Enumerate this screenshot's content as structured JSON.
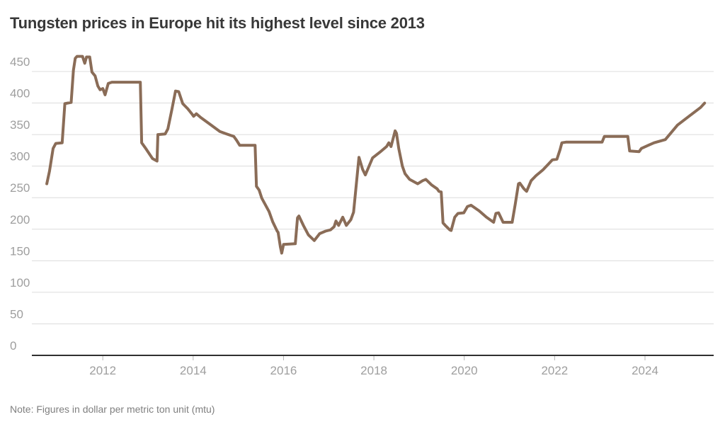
{
  "chart_data": {
    "type": "line",
    "title": "Tungsten prices in Europe hit its highest level since 2013",
    "note": "Note: Figures in dollar per metric ton unit (mtu)",
    "unit": "dollar per metric ton unit (mtu)",
    "x_ticks": [
      2012,
      2014,
      2016,
      2018,
      2020,
      2022,
      2024
    ],
    "y_ticks": [
      0,
      50,
      100,
      150,
      200,
      250,
      300,
      350,
      400,
      450
    ],
    "x_range": [
      2010.43,
      2025.52
    ],
    "y_range": [
      0,
      450
    ],
    "grid": "horizontal",
    "legend": "none",
    "colors": {
      "line": "#8a6c57",
      "grid": "#dcdcdc",
      "axis": "#2f2f2f",
      "tick": "#b5b5b5",
      "label": "#9e9e9e",
      "title": "#383838",
      "note": "#7f7f7f"
    },
    "series": [
      {
        "name": "Tungsten price, Europe ($/mtu)",
        "color": "#8a6c57",
        "points": [
          [
            2010.76,
            272
          ],
          [
            2010.82,
            292
          ],
          [
            2010.9,
            328
          ],
          [
            2010.96,
            336
          ],
          [
            2011.1,
            337
          ],
          [
            2011.16,
            399
          ],
          [
            2011.3,
            401
          ],
          [
            2011.35,
            452
          ],
          [
            2011.39,
            471
          ],
          [
            2011.43,
            474
          ],
          [
            2011.55,
            474
          ],
          [
            2011.6,
            463
          ],
          [
            2011.64,
            473
          ],
          [
            2011.71,
            473
          ],
          [
            2011.76,
            449
          ],
          [
            2011.83,
            443
          ],
          [
            2011.89,
            427
          ],
          [
            2011.94,
            421
          ],
          [
            2012.0,
            423
          ],
          [
            2012.05,
            413
          ],
          [
            2012.12,
            431
          ],
          [
            2012.2,
            433
          ],
          [
            2012.83,
            433
          ],
          [
            2012.86,
            337
          ],
          [
            2012.94,
            329
          ],
          [
            2013.1,
            312
          ],
          [
            2013.2,
            308
          ],
          [
            2013.22,
            350
          ],
          [
            2013.38,
            351
          ],
          [
            2013.44,
            359
          ],
          [
            2013.53,
            390
          ],
          [
            2013.61,
            419
          ],
          [
            2013.68,
            418
          ],
          [
            2013.77,
            399
          ],
          [
            2013.88,
            391
          ],
          [
            2013.97,
            383
          ],
          [
            2014.01,
            379
          ],
          [
            2014.07,
            383
          ],
          [
            2014.17,
            377
          ],
          [
            2014.38,
            366
          ],
          [
            2014.59,
            355
          ],
          [
            2014.74,
            351
          ],
          [
            2014.9,
            347
          ],
          [
            2014.96,
            341
          ],
          [
            2015.03,
            333
          ],
          [
            2015.37,
            333
          ],
          [
            2015.4,
            268
          ],
          [
            2015.46,
            262
          ],
          [
            2015.52,
            249
          ],
          [
            2015.68,
            228
          ],
          [
            2015.76,
            212
          ],
          [
            2015.86,
            197
          ],
          [
            2015.88,
            195
          ],
          [
            2015.93,
            172
          ],
          [
            2015.96,
            162
          ],
          [
            2016.0,
            176
          ],
          [
            2016.26,
            177
          ],
          [
            2016.31,
            218
          ],
          [
            2016.34,
            221
          ],
          [
            2016.44,
            206
          ],
          [
            2016.55,
            191
          ],
          [
            2016.68,
            182
          ],
          [
            2016.8,
            193
          ],
          [
            2016.93,
            197
          ],
          [
            2017.04,
            199
          ],
          [
            2017.12,
            204
          ],
          [
            2017.16,
            213
          ],
          [
            2017.22,
            206
          ],
          [
            2017.31,
            219
          ],
          [
            2017.39,
            206
          ],
          [
            2017.49,
            215
          ],
          [
            2017.55,
            227
          ],
          [
            2017.67,
            314
          ],
          [
            2017.75,
            295
          ],
          [
            2017.81,
            286
          ],
          [
            2017.97,
            313
          ],
          [
            2018.13,
            322
          ],
          [
            2018.28,
            331
          ],
          [
            2018.33,
            337
          ],
          [
            2018.38,
            331
          ],
          [
            2018.47,
            356
          ],
          [
            2018.5,
            352
          ],
          [
            2018.55,
            328
          ],
          [
            2018.63,
            300
          ],
          [
            2018.69,
            288
          ],
          [
            2018.79,
            279
          ],
          [
            2018.97,
            272
          ],
          [
            2019.08,
            277
          ],
          [
            2019.15,
            279
          ],
          [
            2019.28,
            270
          ],
          [
            2019.4,
            264
          ],
          [
            2019.44,
            260
          ],
          [
            2019.49,
            259
          ],
          [
            2019.53,
            210
          ],
          [
            2019.58,
            206
          ],
          [
            2019.68,
            199
          ],
          [
            2019.71,
            198
          ],
          [
            2019.79,
            219
          ],
          [
            2019.86,
            225
          ],
          [
            2019.99,
            226
          ],
          [
            2020.07,
            236
          ],
          [
            2020.15,
            238
          ],
          [
            2020.33,
            229
          ],
          [
            2020.49,
            219
          ],
          [
            2020.65,
            211
          ],
          [
            2020.7,
            225
          ],
          [
            2020.76,
            226
          ],
          [
            2020.86,
            211
          ],
          [
            2021.06,
            211
          ],
          [
            2021.13,
            240
          ],
          [
            2021.2,
            272
          ],
          [
            2021.23,
            273
          ],
          [
            2021.32,
            264
          ],
          [
            2021.38,
            260
          ],
          [
            2021.48,
            277
          ],
          [
            2021.59,
            285
          ],
          [
            2021.74,
            294
          ],
          [
            2021.86,
            303
          ],
          [
            2021.95,
            310
          ],
          [
            2022.05,
            311
          ],
          [
            2022.12,
            326
          ],
          [
            2022.16,
            337
          ],
          [
            2022.25,
            338
          ],
          [
            2023.05,
            338
          ],
          [
            2023.1,
            347
          ],
          [
            2023.62,
            347
          ],
          [
            2023.66,
            324
          ],
          [
            2023.87,
            323
          ],
          [
            2023.92,
            328
          ],
          [
            2024.07,
            333
          ],
          [
            2024.2,
            337
          ],
          [
            2024.45,
            342
          ],
          [
            2024.72,
            365
          ],
          [
            2024.99,
            380
          ],
          [
            2025.23,
            393
          ],
          [
            2025.32,
            400
          ]
        ]
      }
    ]
  }
}
